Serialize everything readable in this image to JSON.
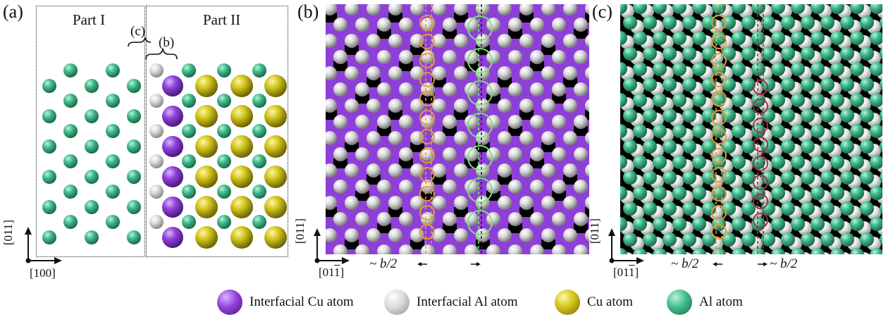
{
  "panels": {
    "a": {
      "letter": "(a)",
      "part1": "Part I",
      "part2": "Part II",
      "brace_c": "(c)",
      "brace_b": "(b)",
      "axis_v": "[011]",
      "axis_h": "[100]"
    },
    "b": {
      "letter": "(b)",
      "axis_v": "[011]",
      "axis_h": "[01",
      "axis_h_bar": "1",
      "axis_h_end": "]",
      "ann": "~ b/2"
    },
    "c": {
      "letter": "(c)",
      "axis_v": "[011]",
      "axis_h": "[01",
      "axis_h_bar": "1",
      "axis_h_end": "]",
      "ann_left": "~ b/2",
      "ann_right": "~ b/2"
    }
  },
  "legend": [
    {
      "label": "Interfacial Cu atom",
      "color": "#8e3fd8"
    },
    {
      "label": "Interfacial Al atom",
      "color": "#d9d9d9"
    },
    {
      "label": "Cu atom",
      "color": "#cfc21a"
    },
    {
      "label": "Al atom",
      "color": "#3fb98a"
    }
  ],
  "colors": {
    "cu_interfacial": "#8e3fd8",
    "al_interfacial": "#d9d9d9",
    "cu": "#cfc21a",
    "al": "#3fb98a",
    "marker_orange": "#e69a3c",
    "marker_green": "#7ee07a",
    "marker_red": "#a03044"
  }
}
